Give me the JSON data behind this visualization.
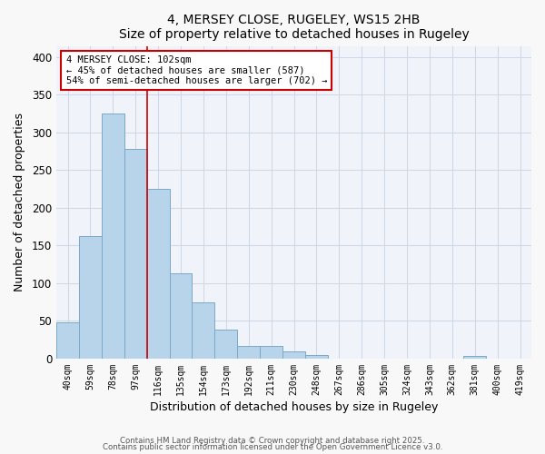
{
  "title": "4, MERSEY CLOSE, RUGELEY, WS15 2HB",
  "subtitle": "Size of property relative to detached houses in Rugeley",
  "xlabel": "Distribution of detached houses by size in Rugeley",
  "ylabel": "Number of detached properties",
  "bar_labels": [
    "40sqm",
    "59sqm",
    "78sqm",
    "97sqm",
    "116sqm",
    "135sqm",
    "154sqm",
    "173sqm",
    "192sqm",
    "211sqm",
    "230sqm",
    "248sqm",
    "267sqm",
    "286sqm",
    "305sqm",
    "324sqm",
    "343sqm",
    "362sqm",
    "381sqm",
    "400sqm",
    "419sqm"
  ],
  "bar_values": [
    48,
    163,
    325,
    278,
    225,
    113,
    75,
    38,
    17,
    17,
    10,
    5,
    0,
    0,
    0,
    0,
    0,
    0,
    3,
    0,
    0
  ],
  "bar_color": "#b8d4ea",
  "bar_edge_color": "#7aaac8",
  "vline_x": 3.5,
  "vline_color": "#cc0000",
  "annotation_text": "4 MERSEY CLOSE: 102sqm\n← 45% of detached houses are smaller (587)\n54% of semi-detached houses are larger (702) →",
  "annotation_box_edgecolor": "#cc0000",
  "ylim": [
    0,
    415
  ],
  "yticks": [
    0,
    50,
    100,
    150,
    200,
    250,
    300,
    350,
    400
  ],
  "footnote1": "Contains HM Land Registry data © Crown copyright and database right 2025.",
  "footnote2": "Contains public sector information licensed under the Open Government Licence v3.0.",
  "bg_color": "#f8f8f8",
  "plot_bg_color": "#f0f4fa",
  "grid_color": "#d0d8e8"
}
